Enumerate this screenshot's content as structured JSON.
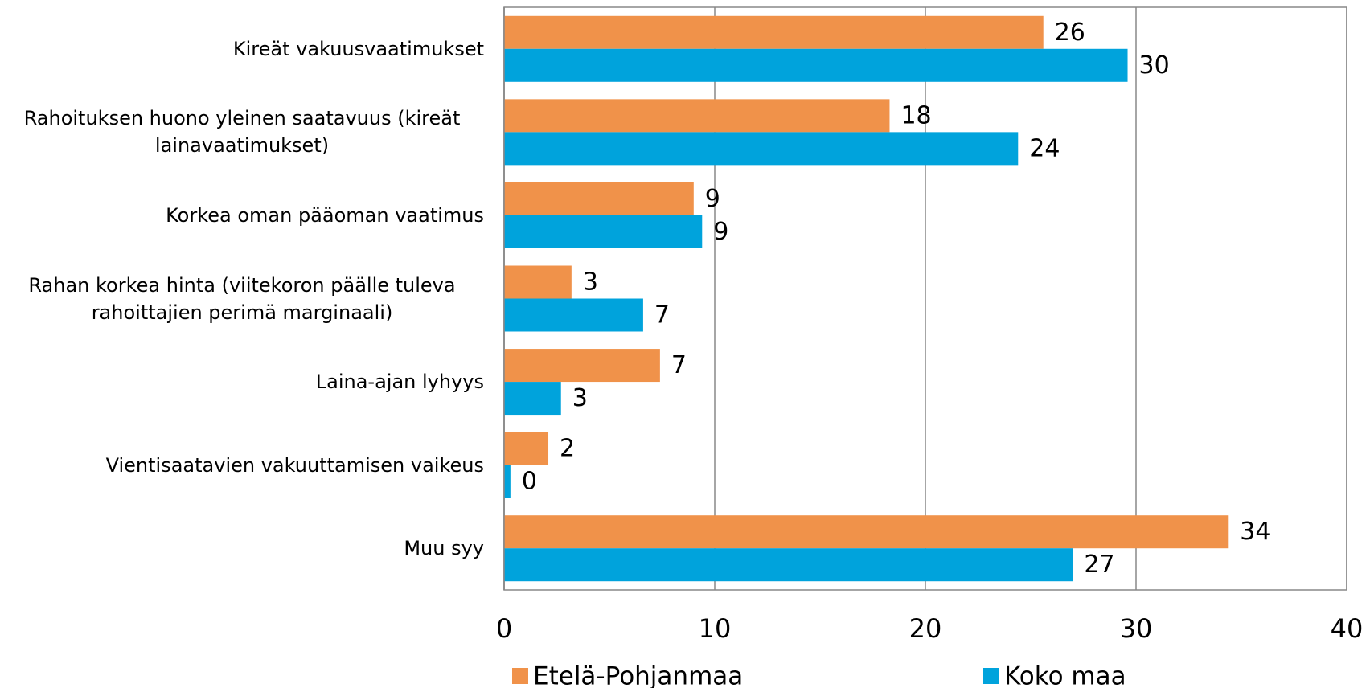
{
  "chart_data": {
    "type": "bar",
    "orientation": "horizontal",
    "categories": [
      "Kireät vakuusvaatimukset",
      "Rahoituksen huono yleinen saatavuus (kireät lainavaatimukset)",
      "Korkea oman pääoman vaatimus",
      "Rahan korkea hinta (viitekoron päälle tuleva rahoittajien perimä marginaali)",
      "Laina-ajan lyhyys",
      "Vientisaatavien vakuuttamisen vaikeus",
      "Muu syy"
    ],
    "series": [
      {
        "name": "Etelä-Pohjanmaa",
        "color": "#f0924a",
        "values": [
          25.6,
          18.3,
          9.0,
          3.2,
          7.4,
          2.1,
          34.4
        ],
        "value_labels": [
          "26",
          "18",
          "9",
          "3",
          "7",
          "2",
          "34"
        ]
      },
      {
        "name": "Koko maa",
        "color": "#00a3dc",
        "values": [
          29.6,
          24.4,
          9.4,
          6.6,
          2.7,
          0.3,
          27.0
        ],
        "value_labels": [
          "30",
          "24",
          "9",
          "7",
          "3",
          "0",
          "27"
        ]
      }
    ],
    "xlim": [
      0,
      40
    ],
    "xticks": [
      0,
      10,
      20,
      30,
      40
    ],
    "grid": true,
    "legend": "bottom"
  }
}
